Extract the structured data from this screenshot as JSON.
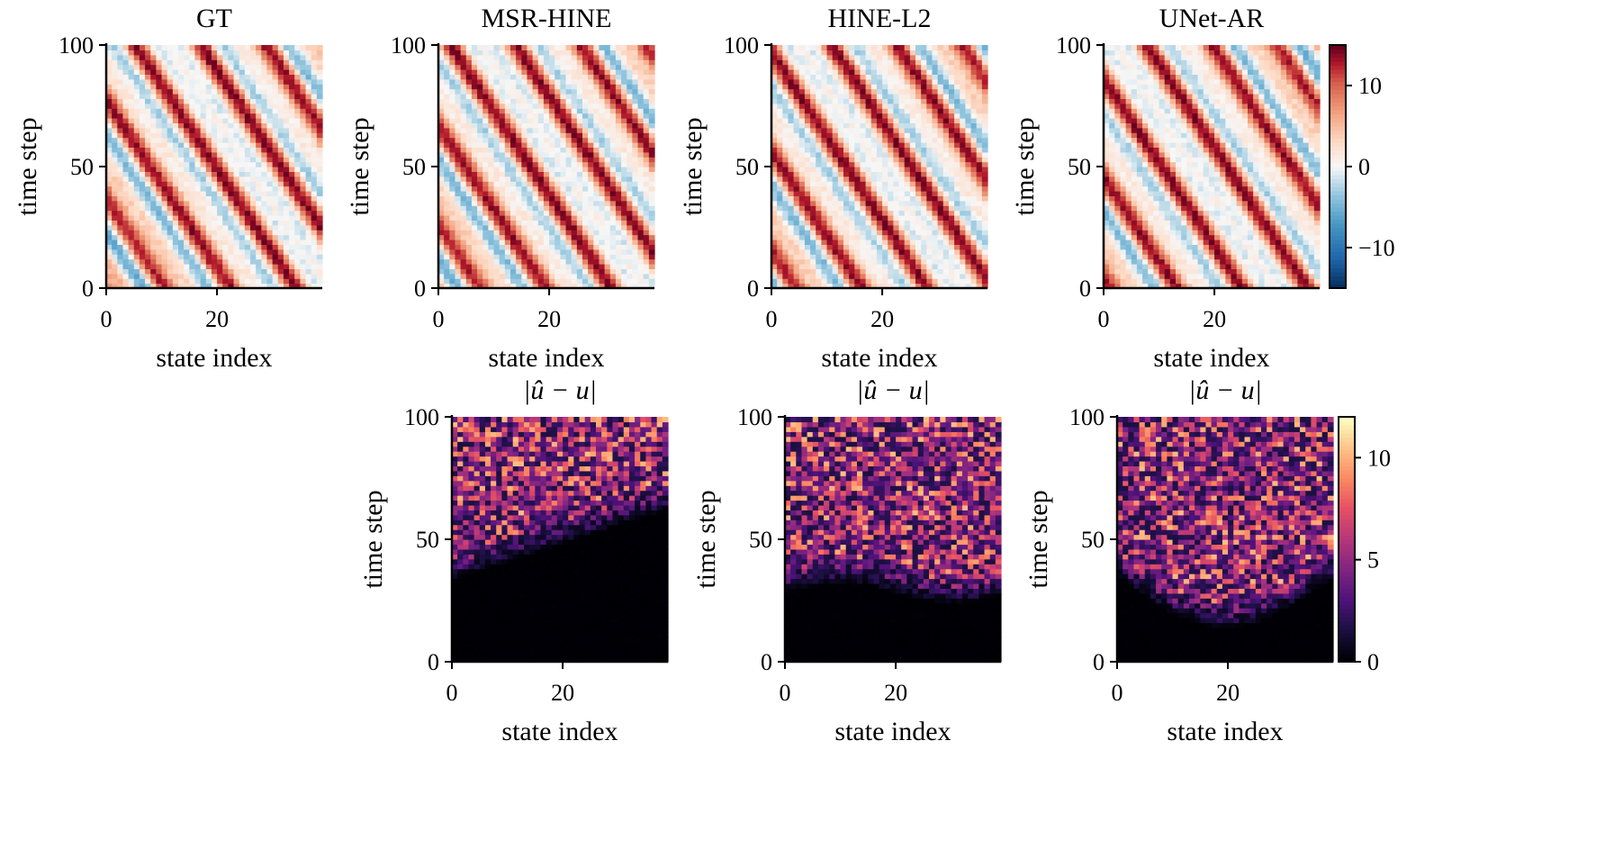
{
  "chart_data": [
    {
      "type": "heatmap",
      "title": "GT",
      "xlabel": "state index",
      "ylabel": "time step",
      "xlim": [
        0,
        39
      ],
      "ylim": [
        0,
        100
      ],
      "xticks": [
        0,
        20
      ],
      "yticks": [
        0,
        50,
        100
      ],
      "colormap": "RdBu_r",
      "vmin": -15,
      "vmax": 15,
      "field": "trajectory"
    },
    {
      "type": "heatmap",
      "title": "MSR-HINE",
      "xlabel": "state index",
      "ylabel": "time step",
      "xlim": [
        0,
        39
      ],
      "ylim": [
        0,
        100
      ],
      "xticks": [
        0,
        20
      ],
      "yticks": [
        0,
        50,
        100
      ],
      "colormap": "RdBu_r",
      "vmin": -15,
      "vmax": 15,
      "field": "trajectory"
    },
    {
      "type": "heatmap",
      "title": "HINE-L2",
      "xlabel": "state index",
      "ylabel": "time step",
      "xlim": [
        0,
        39
      ],
      "ylim": [
        0,
        100
      ],
      "xticks": [
        0,
        20
      ],
      "yticks": [
        0,
        50,
        100
      ],
      "colormap": "RdBu_r",
      "vmin": -15,
      "vmax": 15,
      "field": "trajectory"
    },
    {
      "type": "heatmap",
      "title": "UNet-AR",
      "xlabel": "state index",
      "ylabel": "time step",
      "xlim": [
        0,
        39
      ],
      "ylim": [
        0,
        100
      ],
      "xticks": [
        0,
        20
      ],
      "yticks": [
        0,
        50,
        100
      ],
      "colormap": "RdBu_r",
      "vmin": -15,
      "vmax": 15,
      "field": "trajectory",
      "colorbar": {
        "ticks": [
          10,
          0,
          -10
        ],
        "tick_labels": [
          "10",
          "0",
          "−10"
        ]
      }
    },
    {
      "type": "heatmap",
      "title": "|û − u|",
      "model": "MSR-HINE",
      "xlabel": "state index",
      "ylabel": "time step",
      "xlim": [
        0,
        39
      ],
      "ylim": [
        0,
        100
      ],
      "xticks": [
        0,
        20
      ],
      "yticks": [
        0,
        50,
        100
      ],
      "colormap": "magma",
      "vmin": 0,
      "vmax": 12,
      "field": "error",
      "error_onset_time_step": [
        40,
        68
      ]
    },
    {
      "type": "heatmap",
      "title": "|û − u|",
      "model": "HINE-L2",
      "xlabel": "state index",
      "ylabel": "time step",
      "xlim": [
        0,
        39
      ],
      "ylim": [
        0,
        100
      ],
      "xticks": [
        0,
        20
      ],
      "yticks": [
        0,
        50,
        100
      ],
      "colormap": "magma",
      "vmin": 0,
      "vmax": 12,
      "field": "error",
      "error_onset_time_step": [
        30,
        38
      ]
    },
    {
      "type": "heatmap",
      "title": "|û − u|",
      "model": "UNet-AR",
      "xlabel": "state index",
      "ylabel": "time step",
      "xlim": [
        0,
        39
      ],
      "ylim": [
        0,
        100
      ],
      "xticks": [
        0,
        20
      ],
      "yticks": [
        0,
        50,
        100
      ],
      "colormap": "magma",
      "vmin": 0,
      "vmax": 12,
      "field": "error",
      "error_onset_time_step": [
        20,
        40
      ],
      "colorbar": {
        "ticks": [
          10,
          5,
          0
        ],
        "tick_labels": [
          "10",
          "5",
          "0"
        ]
      }
    }
  ]
}
